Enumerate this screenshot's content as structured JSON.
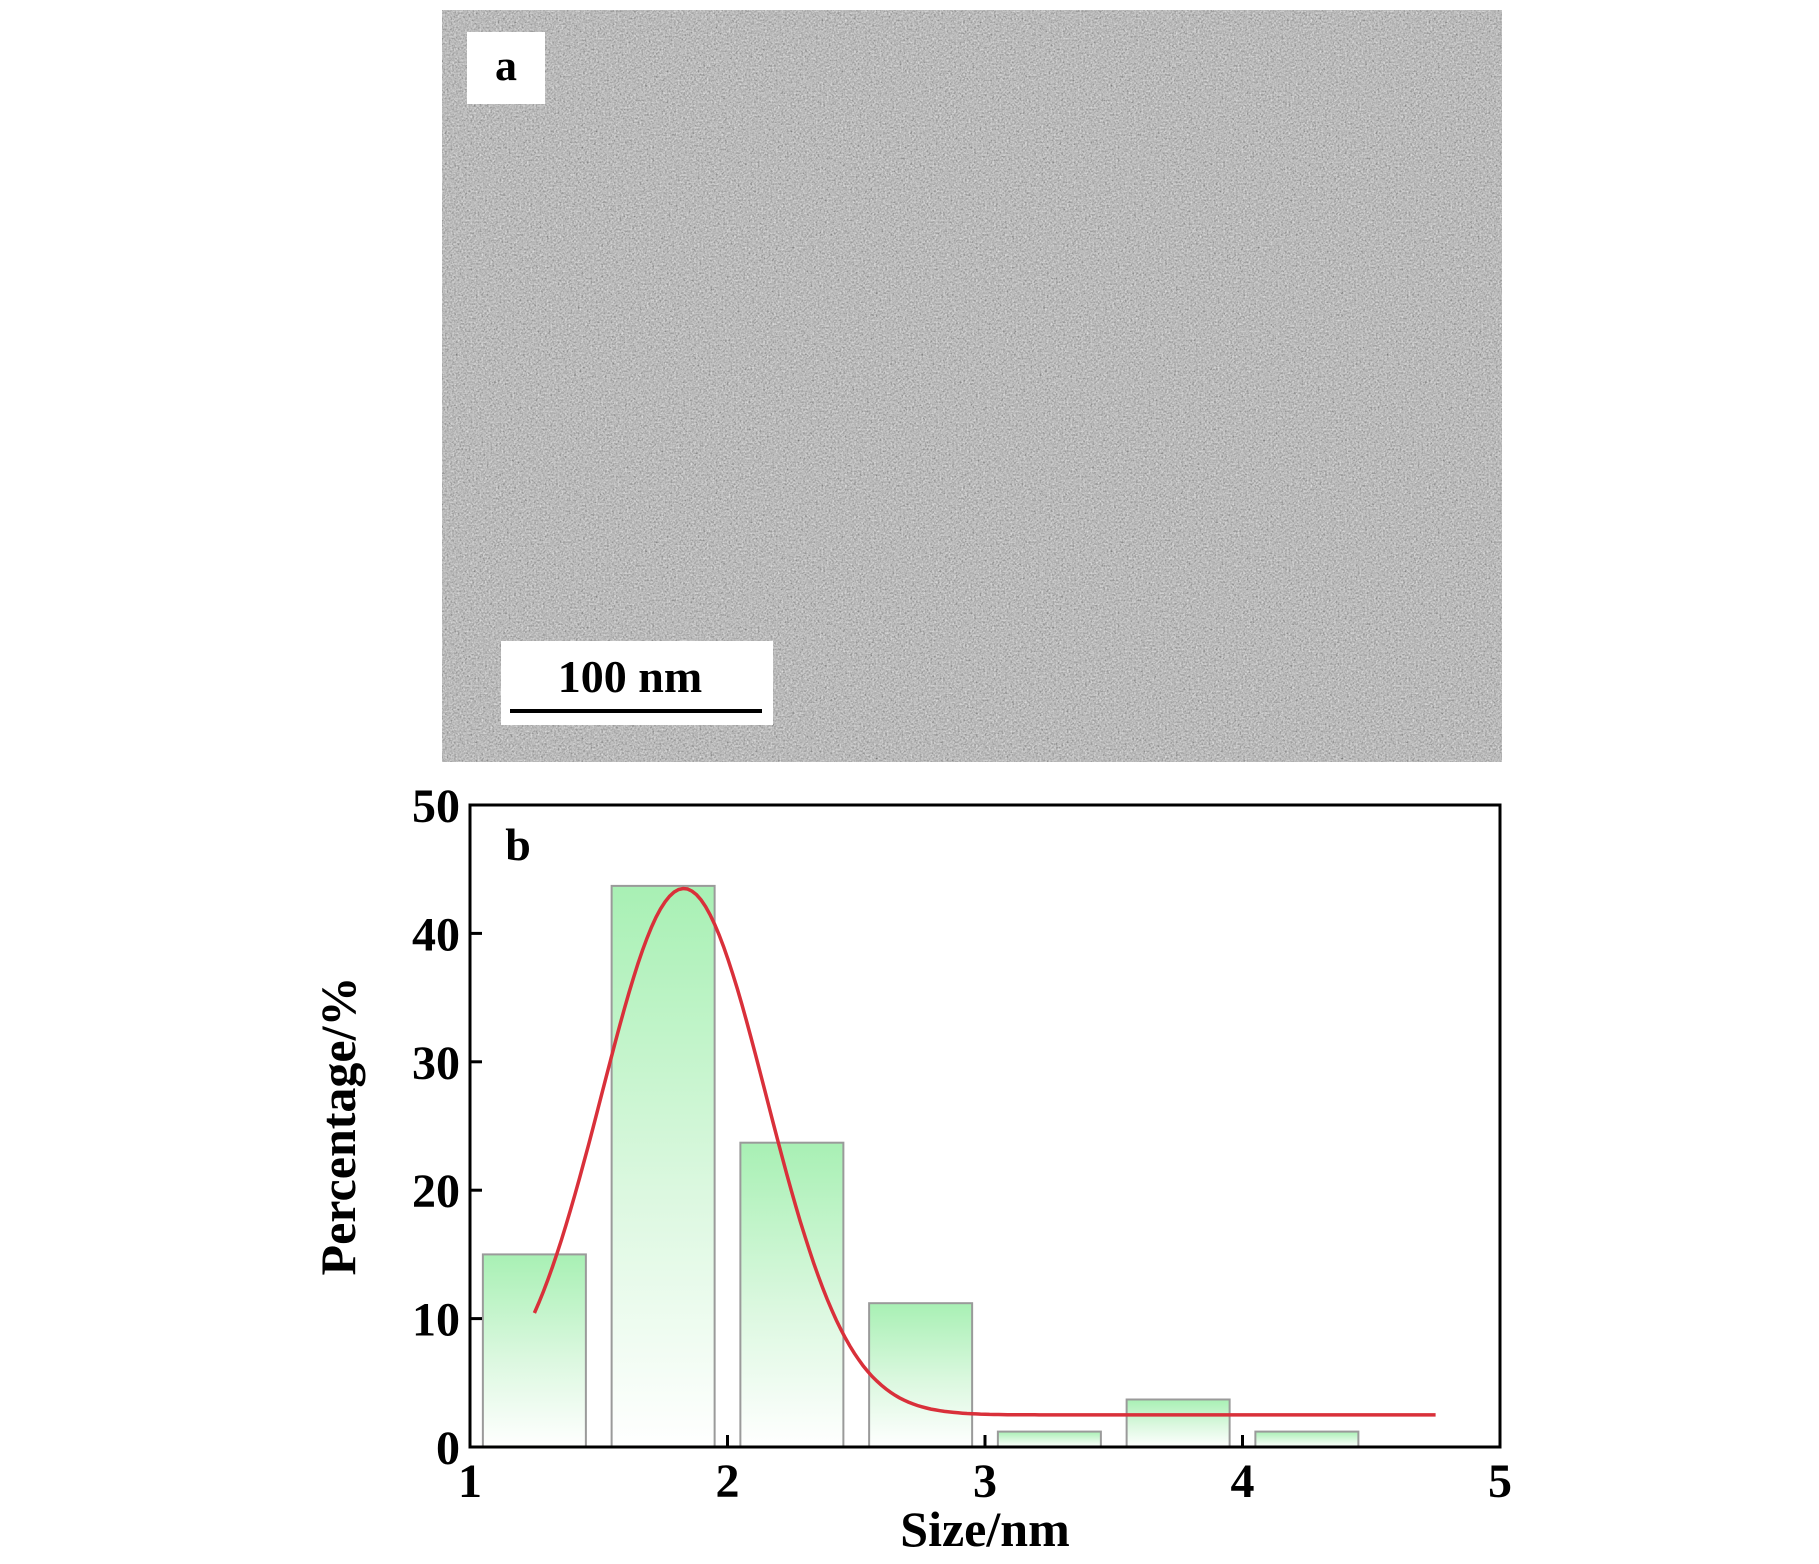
{
  "panel_a": {
    "label": "a",
    "scale_bar_label": "100 nm"
  },
  "chart_data": {
    "type": "bar",
    "panel_label": "b",
    "title": "",
    "xlabel": "Size/nm",
    "ylabel": "Percentage/%",
    "xlim": [
      1,
      5
    ],
    "ylim": [
      0,
      50
    ],
    "x_ticks": [
      "1",
      "2",
      "3",
      "4",
      "5"
    ],
    "y_ticks": [
      "0",
      "10",
      "20",
      "30",
      "40",
      "50"
    ],
    "grid": false,
    "legend": "none",
    "bar_width": 0.4,
    "bars": [
      {
        "x": 1.25,
        "value": 15
      },
      {
        "x": 1.75,
        "value": 43.7
      },
      {
        "x": 2.25,
        "value": 23.7
      },
      {
        "x": 2.75,
        "value": 11.2
      },
      {
        "x": 3.25,
        "value": 1.2
      },
      {
        "x": 3.75,
        "value": 3.7
      },
      {
        "x": 4.25,
        "value": 1.2
      }
    ],
    "fit_curve": {
      "type": "gaussian",
      "baseline": 2.5,
      "amplitude": 41,
      "center": 1.83,
      "sigma": 0.32,
      "x_range": [
        1.25,
        4.75
      ]
    },
    "colors": {
      "bar_top": "#a8f0b4",
      "bar_outline": "#9a9a9a",
      "curve": "#d9303a",
      "axis": "#000000"
    }
  }
}
